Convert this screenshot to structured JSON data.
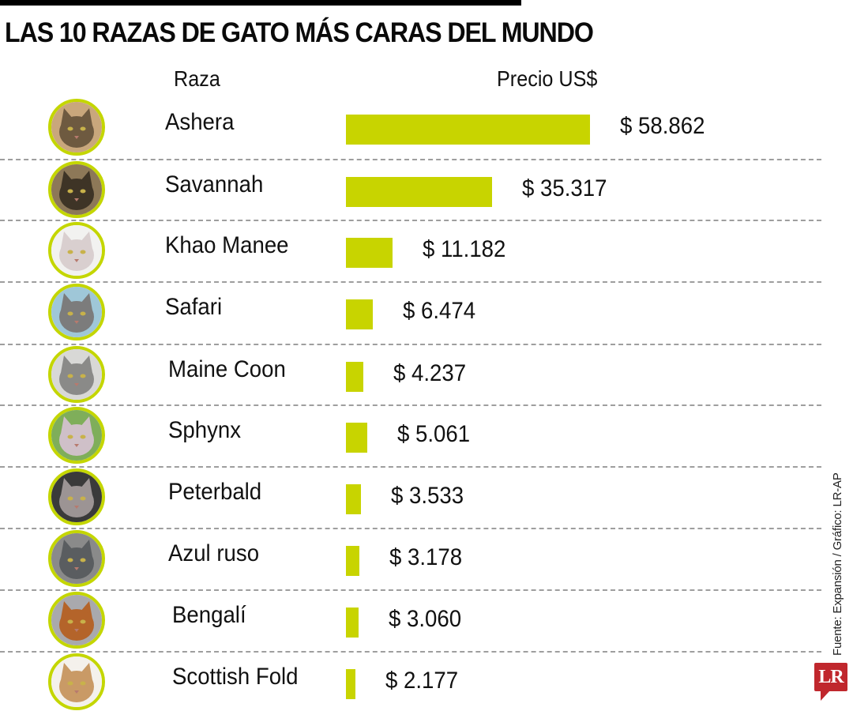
{
  "header": {
    "title": "LAS 10 RAZAS DE GATO MÁS CARAS DEL MUNDO",
    "col_breed": "Raza",
    "col_price": "Precio US$"
  },
  "colors": {
    "bar": "#c8d400",
    "avatar_ring": "#c4d600",
    "divider": "#9e9e9e",
    "logo_bg": "#c0272d",
    "title_bar": "#000000"
  },
  "rows": [
    {
      "breed": "Ashera",
      "price_label": "$ 58.862",
      "avatar_icon": "ashera-cat-photo"
    },
    {
      "breed": "Savannah",
      "price_label": "$ 35.317",
      "avatar_icon": "savannah-cat-photo"
    },
    {
      "breed": "Khao Manee",
      "price_label": "$ 11.182",
      "avatar_icon": "khao-manee-cat-photo"
    },
    {
      "breed": "Safari",
      "price_label": "$ 6.474",
      "avatar_icon": "safari-cat-photo"
    },
    {
      "breed": "Maine Coon",
      "price_label": "$ 4.237",
      "avatar_icon": "maine-coon-cat-photo"
    },
    {
      "breed": "Sphynx",
      "price_label": "$ 5.061",
      "avatar_icon": "sphynx-cat-photo"
    },
    {
      "breed": "Peterbald",
      "price_label": "$ 3.533",
      "avatar_icon": "peterbald-cat-photo"
    },
    {
      "breed": "Azul ruso",
      "price_label": "$ 3.178",
      "avatar_icon": "russian-blue-cat-photo"
    },
    {
      "breed": "Bengalí",
      "price_label": "$ 3.060",
      "avatar_icon": "bengal-cat-photo"
    },
    {
      "breed": "Scottish Fold",
      "price_label": "$ 2.177",
      "avatar_icon": "scottish-fold-cat-photo"
    }
  ],
  "footer": {
    "source": "Fuente: Expansión  / Gráfico: LR-AP",
    "logo_text": "LR"
  },
  "chart_data": {
    "type": "bar",
    "orientation": "horizontal",
    "title": "LAS 10 RAZAS DE GATO MÁS CARAS DEL MUNDO",
    "xlabel": "Precio US$",
    "ylabel": "Raza",
    "categories": [
      "Ashera",
      "Savannah",
      "Khao Manee",
      "Safari",
      "Maine Coon",
      "Sphynx",
      "Peterbald",
      "Azul ruso",
      "Bengalí",
      "Scottish Fold"
    ],
    "values": [
      58862,
      35317,
      11182,
      6474,
      4237,
      5061,
      3533,
      3178,
      3060,
      2177
    ],
    "value_labels": [
      "$ 58.862",
      "$ 35.317",
      "$ 11.182",
      "$ 6.474",
      "$ 4.237",
      "$ 5.061",
      "$ 3.533",
      "$ 3.178",
      "$ 3.060",
      "$ 2.177"
    ],
    "units": "USD",
    "grid": false,
    "legend": null,
    "annotations": [
      "Fuente: Expansión  / Gráfico: LR-AP"
    ]
  }
}
